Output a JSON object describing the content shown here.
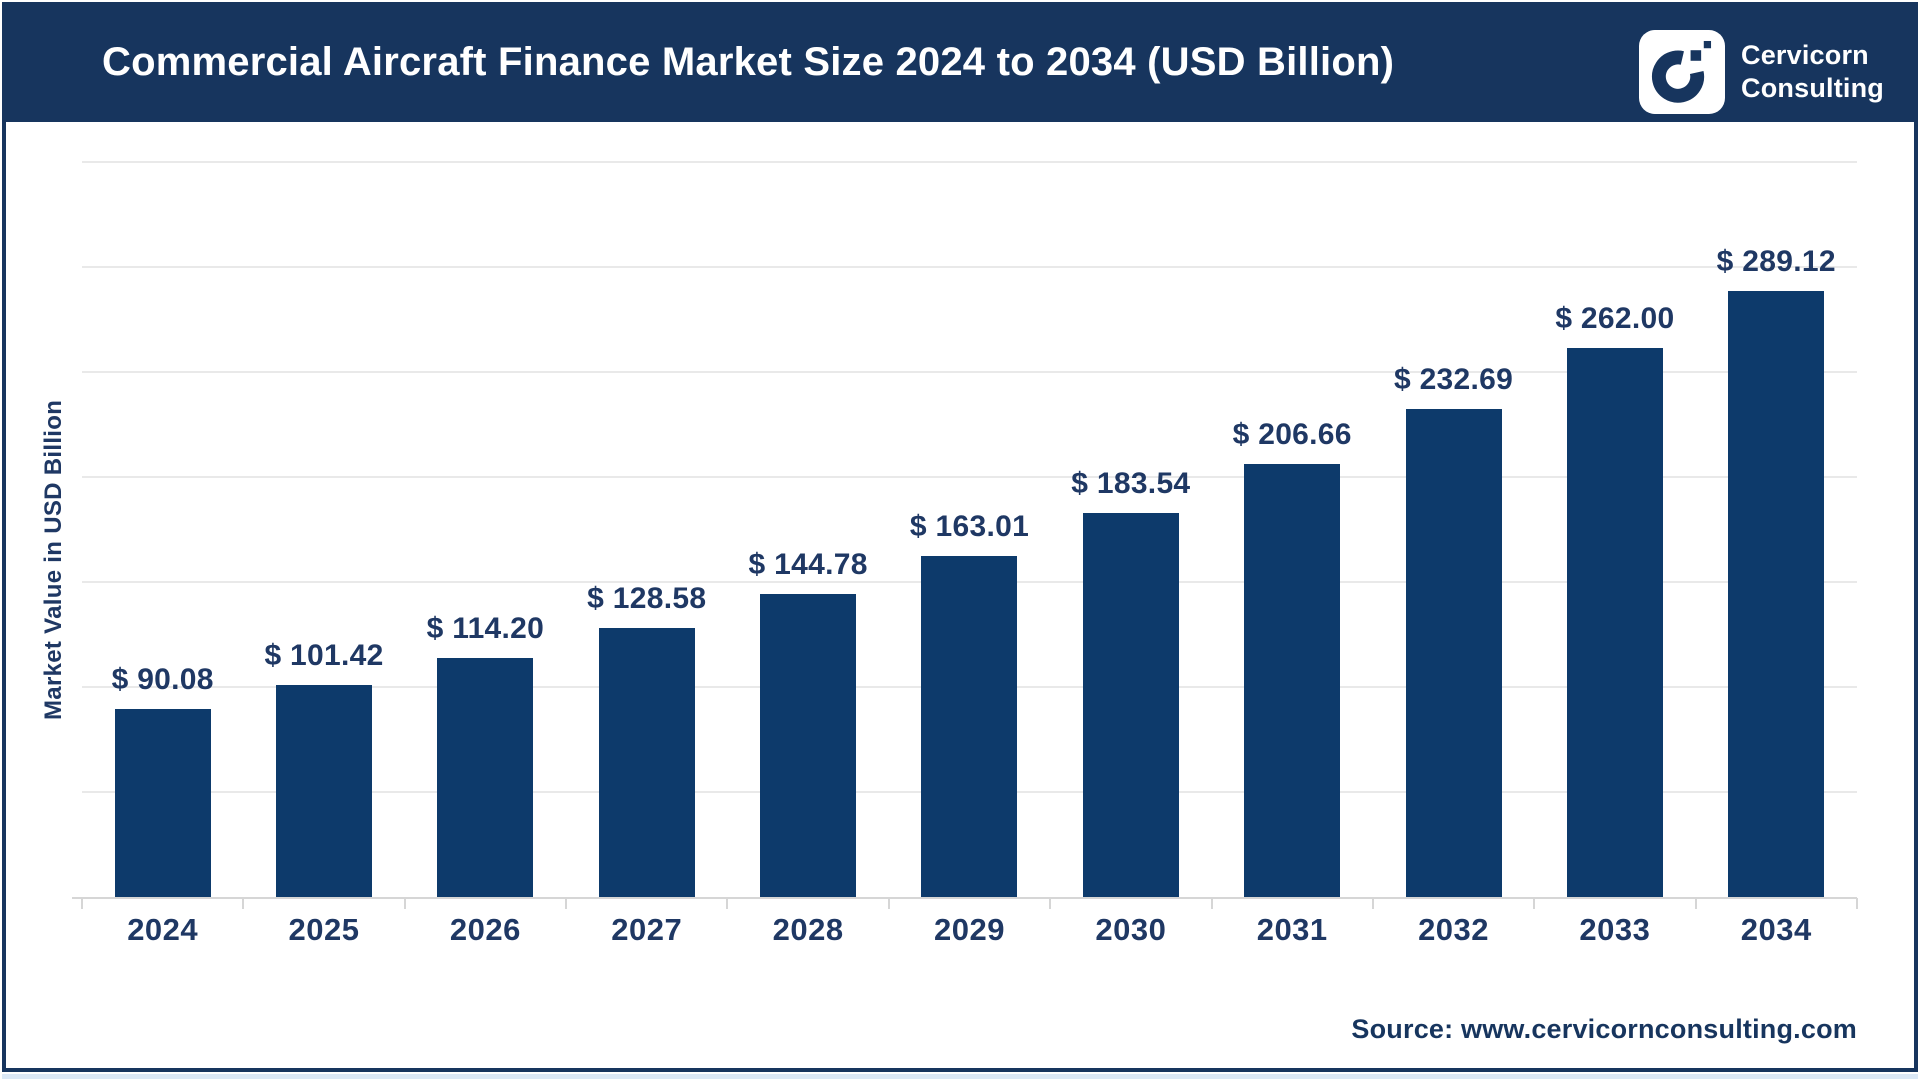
{
  "header": {
    "title": "Commercial Aircraft Finance Market Size 2024 to 2034 (USD Billion)",
    "logo": {
      "line1": "Cervicorn",
      "line2": "Consulting",
      "icon": "cervicorn-c-mark"
    }
  },
  "source": {
    "text": "Source: www.cervicornconsulting.com"
  },
  "colors": {
    "header_navy": "#17355e",
    "bar_navy": "#0d3a6b",
    "label_navy": "#1f3864",
    "gridline": "#e9e9e9",
    "axis": "#d6d6d6",
    "logo_box": "#ffffff"
  },
  "chart_data": {
    "type": "bar",
    "title": "Commercial Aircraft Finance Market Size 2024 to 2034 (USD Billion)",
    "xlabel": "",
    "ylabel": "Market Value in USD Billion",
    "categories": [
      "2024",
      "2025",
      "2026",
      "2027",
      "2028",
      "2029",
      "2030",
      "2031",
      "2032",
      "2033",
      "2034"
    ],
    "values": [
      90.08,
      101.42,
      114.2,
      128.58,
      144.78,
      163.01,
      183.54,
      206.66,
      232.69,
      262.0,
      289.12
    ],
    "value_labels": [
      "$ 90.08",
      "$ 101.42",
      "$ 114.20",
      "$ 128.58",
      "$ 144.78",
      "$ 163.01",
      "$ 183.54",
      "$ 206.66",
      "$ 232.69",
      "$ 262.00",
      "$ 289.12"
    ],
    "ylim": [
      0,
      350
    ],
    "gridline_step": 50,
    "grid": true,
    "legend": "none",
    "y_tick_labels_visible": false,
    "data_labels_position": "above-bar"
  }
}
